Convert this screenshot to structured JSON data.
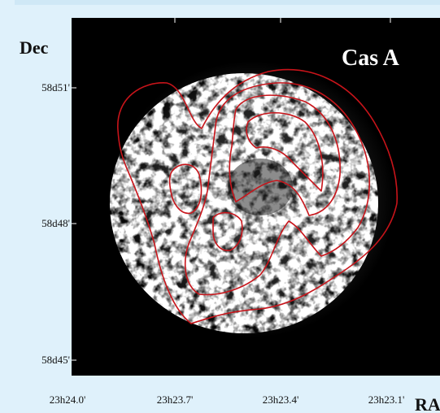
{
  "title": "Cas A",
  "axes": {
    "y_label": "Dec",
    "x_label": "RA",
    "y_ticks": [
      "58d51'",
      "58d48'",
      "58d45'"
    ],
    "x_ticks": [
      "23h24.0'",
      "23h23.7'",
      "23h23.4'",
      "23h23.1'"
    ]
  }
}
